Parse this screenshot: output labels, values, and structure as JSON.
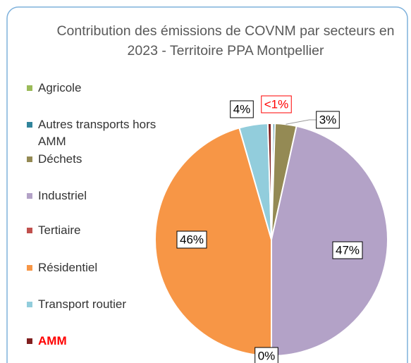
{
  "chart_data": {
    "type": "pie",
    "title": "Contribution des émissions de COVNM par secteurs en 2023 - Territoire PPA Montpellier",
    "categories": [
      "Agricole",
      "Autres transports hors AMM",
      "Déchets",
      "Industriel",
      "Tertiaire",
      "Résidentiel",
      "Transport routier",
      "AMM"
    ],
    "values": [
      0.2,
      0.3,
      3,
      47,
      0,
      46,
      4,
      0.5
    ],
    "value_labels": [
      null,
      null,
      "3%",
      "47%",
      "0%",
      "46%",
      "4%",
      "<1%"
    ],
    "colors": [
      "#9bbb59",
      "#31849b",
      "#948a54",
      "#b3a2c7",
      "#c0504d",
      "#f79646",
      "#92cddc",
      "#7f1f1f"
    ],
    "legend": "left"
  }
}
